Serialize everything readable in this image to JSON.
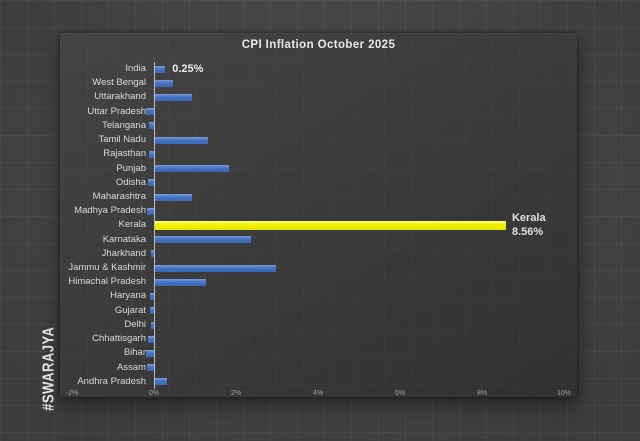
{
  "watermark": "#SWARAJYA",
  "chart_data": {
    "type": "bar",
    "orientation": "horizontal",
    "title": "CPI Inflation October 2025",
    "xlabel": "",
    "ylabel": "",
    "xlim": [
      -2,
      10
    ],
    "grid": false,
    "x_ticks": [
      {
        "value": -2,
        "label": "-2%"
      },
      {
        "value": 0,
        "label": "0%"
      },
      {
        "value": 2,
        "label": "2%"
      },
      {
        "value": 4,
        "label": "4%"
      },
      {
        "value": 6,
        "label": "6%"
      },
      {
        "value": 8,
        "label": "8%"
      },
      {
        "value": 10,
        "label": "10%"
      }
    ],
    "categories": [
      "India",
      "West Bengal",
      "Uttarakhand",
      "Uttar Pradesh",
      "Telangana",
      "Tamil Nadu",
      "Rajasthan",
      "Punjab",
      "Odisha",
      "Maharashtra",
      "Madhya Pradesh",
      "Kerala",
      "Karnataka",
      "Jharkhand",
      "Jammu & Kashmir",
      "Himachal Pradesh",
      "Haryana",
      "Gujarat",
      "Delhi",
      "Chhattisgarh",
      "Bihar",
      "Assam",
      "Andhra Pradesh"
    ],
    "values": [
      0.25,
      0.45,
      0.9,
      -0.2,
      -0.12,
      1.3,
      -0.12,
      1.8,
      -0.15,
      0.9,
      -0.16,
      8.56,
      2.35,
      -0.07,
      2.95,
      1.25,
      -0.1,
      -0.1,
      -0.07,
      -0.15,
      -0.2,
      -0.17,
      0.3
    ],
    "highlight": {
      "category": "Kerala",
      "value": 8.56,
      "label_line1": "Kerala",
      "label_line2": "8.56%",
      "color": "#f2f200"
    },
    "annotation": {
      "category": "India",
      "text": "0.25%"
    },
    "bar_color": "#4472c4"
  },
  "colors": {
    "wall": "#494949",
    "panel": "#3a3a3a",
    "bar_blue": "#4472c4",
    "bar_yellow": "#f2f200",
    "axis_line": "#bdbdbd",
    "title_text": "#e8e8e8",
    "label_text": "#dadada",
    "tick_text": "#a2a2a2"
  }
}
